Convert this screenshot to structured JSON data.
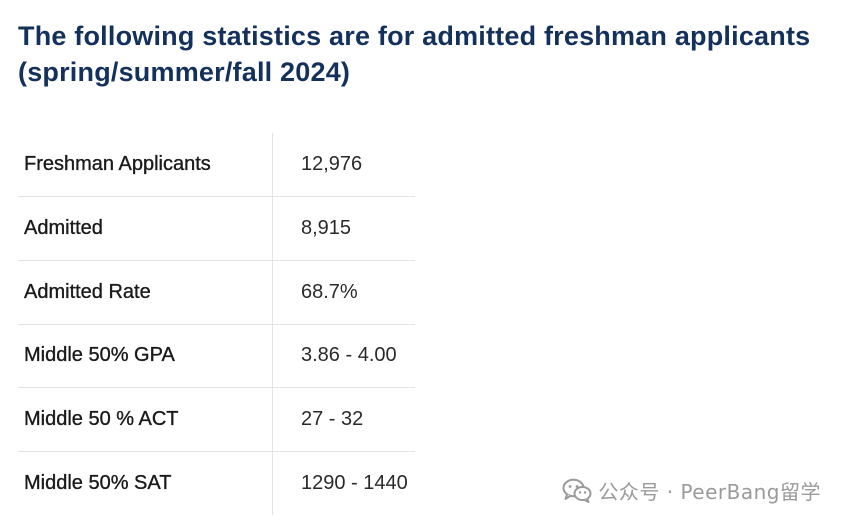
{
  "heading": "The following statistics are for admitted freshman applicants (spring/summer/fall 2024)",
  "stats": [
    {
      "label": "Freshman Applicants",
      "value": "12,976"
    },
    {
      "label": "Admitted",
      "value": "8,915"
    },
    {
      "label": "Admitted Rate",
      "value": "68.7%"
    },
    {
      "label": "Middle 50% GPA",
      "value": "3.86 - 4.00"
    },
    {
      "label": "Middle 50 % ACT",
      "value": "27 - 32"
    },
    {
      "label": "Middle 50% SAT",
      "value": "1290 - 1440"
    }
  ],
  "watermark": {
    "text": "公众号 · PeerBang留学",
    "icon": "wechat-icon"
  }
}
